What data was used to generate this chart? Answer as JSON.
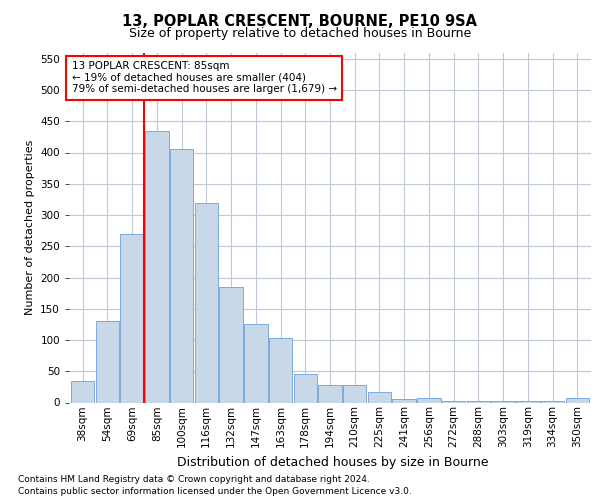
{
  "title1": "13, POPLAR CRESCENT, BOURNE, PE10 9SA",
  "title2": "Size of property relative to detached houses in Bourne",
  "xlabel": "Distribution of detached houses by size in Bourne",
  "ylabel": "Number of detached properties",
  "categories": [
    "38sqm",
    "54sqm",
    "69sqm",
    "85sqm",
    "100sqm",
    "116sqm",
    "132sqm",
    "147sqm",
    "163sqm",
    "178sqm",
    "194sqm",
    "210sqm",
    "225sqm",
    "241sqm",
    "256sqm",
    "272sqm",
    "288sqm",
    "303sqm",
    "319sqm",
    "334sqm",
    "350sqm"
  ],
  "values": [
    35,
    130,
    270,
    435,
    405,
    320,
    185,
    125,
    103,
    45,
    28,
    28,
    17,
    5,
    8,
    3,
    3,
    3,
    3,
    3,
    7
  ],
  "bar_color": "#c8d8e8",
  "bar_edge_color": "#7aabe0",
  "red_line_index": 3,
  "annotation_text": "13 POPLAR CRESCENT: 85sqm\n← 19% of detached houses are smaller (404)\n79% of semi-detached houses are larger (1,679) →",
  "annotation_box_color": "white",
  "annotation_box_edge": "red",
  "vline_color": "red",
  "ylim": [
    0,
    560
  ],
  "yticks": [
    0,
    50,
    100,
    150,
    200,
    250,
    300,
    350,
    400,
    450,
    500,
    550
  ],
  "footer1": "Contains HM Land Registry data © Crown copyright and database right 2024.",
  "footer2": "Contains public sector information licensed under the Open Government Licence v3.0.",
  "bg_color": "#ffffff",
  "grid_color": "#c0c8d8",
  "title1_fontsize": 10.5,
  "title2_fontsize": 9,
  "ylabel_fontsize": 8,
  "xlabel_fontsize": 9,
  "tick_fontsize": 7.5,
  "annotation_fontsize": 7.5,
  "footer_fontsize": 6.5
}
